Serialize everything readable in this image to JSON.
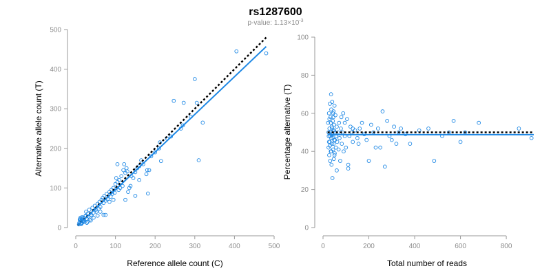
{
  "title": "rs1287600",
  "subtitle": {
    "prefix": "p-value: 1.13×10",
    "exponent": "-3"
  },
  "colors": {
    "points": "#1e88e5",
    "fit_line": "#1e88e5",
    "reference_line": "#000000",
    "axis": "#9a9a9a",
    "tick_text": "#8c8c8c"
  },
  "chart_data": [
    {
      "type": "scatter",
      "id": "left",
      "xlabel": "Reference allele count (C)",
      "ylabel": "Alternative allele count (T)",
      "xlim": [
        0,
        500
      ],
      "ylim": [
        0,
        500
      ],
      "xticks": [
        0,
        100,
        200,
        300,
        400,
        500
      ],
      "yticks": [
        0,
        100,
        200,
        300,
        400,
        500
      ],
      "fit_line": {
        "x": [
          5,
          480
        ],
        "y": [
          5,
          457
        ]
      },
      "reference_line": {
        "x": [
          5,
          480
        ],
        "y": [
          5,
          480
        ]
      },
      "points": [
        [
          8,
          8
        ],
        [
          10,
          14
        ],
        [
          12,
          18
        ],
        [
          9,
          12
        ],
        [
          13,
          10
        ],
        [
          15,
          20
        ],
        [
          16,
          12
        ],
        [
          11,
          22
        ],
        [
          14,
          16
        ],
        [
          18,
          15
        ],
        [
          20,
          25
        ],
        [
          17,
          22
        ],
        [
          22,
          14
        ],
        [
          24,
          28
        ],
        [
          19,
          18
        ],
        [
          12,
          25
        ],
        [
          10,
          20
        ],
        [
          14,
          9
        ],
        [
          16,
          26
        ],
        [
          21,
          18
        ],
        [
          25,
          30
        ],
        [
          28,
          22
        ],
        [
          30,
          35
        ],
        [
          26,
          40
        ],
        [
          32,
          28
        ],
        [
          35,
          20
        ],
        [
          34,
          45
        ],
        [
          38,
          32
        ],
        [
          40,
          30
        ],
        [
          30,
          15
        ],
        [
          42,
          50
        ],
        [
          45,
          38
        ],
        [
          48,
          55
        ],
        [
          50,
          45
        ],
        [
          52,
          40
        ],
        [
          55,
          60
        ],
        [
          58,
          48
        ],
        [
          60,
          65
        ],
        [
          62,
          52
        ],
        [
          65,
          70
        ],
        [
          68,
          75
        ],
        [
          70,
          62
        ],
        [
          72,
          80
        ],
        [
          75,
          68
        ],
        [
          78,
          85
        ],
        [
          80,
          72
        ],
        [
          70,
          32
        ],
        [
          75,
          32
        ],
        [
          85,
          90
        ],
        [
          88,
          78
        ],
        [
          90,
          95
        ],
        [
          92,
          85
        ],
        [
          95,
          100
        ],
        [
          98,
          88
        ],
        [
          100,
          110
        ],
        [
          102,
          125
        ],
        [
          105,
          115
        ],
        [
          108,
          95
        ],
        [
          110,
          120
        ],
        [
          112,
          100
        ],
        [
          115,
          130
        ],
        [
          118,
          105
        ],
        [
          120,
          145
        ],
        [
          122,
          160
        ],
        [
          125,
          138
        ],
        [
          128,
          150
        ],
        [
          130,
          142
        ],
        [
          132,
          90
        ],
        [
          135,
          100
        ],
        [
          138,
          105
        ],
        [
          140,
          130
        ],
        [
          145,
          125
        ],
        [
          150,
          140
        ],
        [
          155,
          150
        ],
        [
          160,
          155
        ],
        [
          165,
          170
        ],
        [
          170,
          160
        ],
        [
          178,
          135
        ],
        [
          180,
          145
        ],
        [
          182,
          86
        ],
        [
          185,
          145
        ],
        [
          190,
          180
        ],
        [
          200,
          190
        ],
        [
          210,
          200
        ],
        [
          215,
          168
        ],
        [
          212,
          215
        ],
        [
          230,
          225
        ],
        [
          240,
          230
        ],
        [
          247,
          320
        ],
        [
          265,
          250
        ],
        [
          270,
          258
        ],
        [
          272,
          315
        ],
        [
          290,
          280
        ],
        [
          300,
          375
        ],
        [
          305,
          315
        ],
        [
          310,
          170
        ],
        [
          320,
          265
        ],
        [
          405,
          445
        ],
        [
          480,
          440
        ],
        [
          105,
          160
        ],
        [
          85,
          65
        ],
        [
          95,
          70
        ],
        [
          125,
          70
        ],
        [
          150,
          80
        ],
        [
          160,
          120
        ],
        [
          62,
          40
        ],
        [
          55,
          30
        ],
        [
          45,
          25
        ],
        [
          38,
          18
        ],
        [
          28,
          12
        ]
      ]
    },
    {
      "type": "scatter",
      "id": "right",
      "xlabel": "Total number of reads",
      "ylabel": "Percentage alternative (T)",
      "xlim": [
        0,
        920
      ],
      "ylim": [
        0,
        100
      ],
      "xticks": [
        0,
        200,
        400,
        600,
        800
      ],
      "yticks": [
        0,
        20,
        40,
        60,
        80,
        100
      ],
      "fit_line": {
        "x": [
          20,
          920
        ],
        "y": [
          48.8,
          48.8
        ]
      },
      "reference_line": {
        "x": [
          20,
          920
        ],
        "y": [
          50,
          50
        ]
      },
      "points": [
        [
          22,
          55
        ],
        [
          24,
          42
        ],
        [
          25,
          48
        ],
        [
          26,
          60
        ],
        [
          27,
          38
        ],
        [
          28,
          52
        ],
        [
          29,
          45
        ],
        [
          30,
          65
        ],
        [
          31,
          35
        ],
        [
          32,
          50
        ],
        [
          33,
          58
        ],
        [
          34,
          40
        ],
        [
          35,
          47
        ],
        [
          36,
          62
        ],
        [
          37,
          33
        ],
        [
          38,
          53
        ],
        [
          39,
          44
        ],
        [
          40,
          66
        ],
        [
          41,
          26
        ],
        [
          42,
          49
        ],
        [
          43,
          56
        ],
        [
          44,
          41
        ],
        [
          45,
          51
        ],
        [
          46,
          61
        ],
        [
          47,
          36
        ],
        [
          48,
          54
        ],
        [
          49,
          46
        ],
        [
          50,
          64
        ],
        [
          51,
          39
        ],
        [
          52,
          50
        ],
        [
          24,
          50
        ],
        [
          26,
          45
        ],
        [
          28,
          57
        ],
        [
          30,
          43
        ],
        [
          32,
          48
        ],
        [
          34,
          55
        ],
        [
          36,
          40
        ],
        [
          38,
          49
        ],
        [
          40,
          52
        ],
        [
          42,
          47
        ],
        [
          44,
          60
        ],
        [
          46,
          44
        ],
        [
          48,
          51
        ],
        [
          50,
          38
        ],
        [
          52,
          46
        ],
        [
          54,
          59
        ],
        [
          56,
          42
        ],
        [
          58,
          48
        ],
        [
          60,
          53
        ],
        [
          62,
          45
        ],
        [
          65,
          50
        ],
        [
          68,
          41
        ],
        [
          70,
          55
        ],
        [
          72,
          47
        ],
        [
          75,
          35
        ],
        [
          78,
          52
        ],
        [
          80,
          58
        ],
        [
          82,
          44
        ],
        [
          85,
          50
        ],
        [
          88,
          60
        ],
        [
          90,
          40
        ],
        [
          95,
          48
        ],
        [
          100,
          42
        ],
        [
          105,
          57
        ],
        [
          110,
          33
        ],
        [
          115,
          48
        ],
        [
          120,
          53
        ],
        [
          125,
          50
        ],
        [
          130,
          45
        ],
        [
          140,
          51
        ],
        [
          150,
          47
        ],
        [
          160,
          52
        ],
        [
          170,
          55
        ],
        [
          180,
          49
        ],
        [
          190,
          46
        ],
        [
          200,
          35
        ],
        [
          210,
          54
        ],
        [
          220,
          50
        ],
        [
          230,
          42
        ],
        [
          240,
          52
        ],
        [
          260,
          61
        ],
        [
          270,
          32
        ],
        [
          280,
          56
        ],
        [
          290,
          48
        ],
        [
          300,
          46
        ],
        [
          310,
          53
        ],
        [
          320,
          44
        ],
        [
          330,
          50
        ],
        [
          340,
          52
        ],
        [
          360,
          49
        ],
        [
          380,
          44
        ],
        [
          420,
          51
        ],
        [
          460,
          52
        ],
        [
          485,
          35
        ],
        [
          520,
          48
        ],
        [
          550,
          50
        ],
        [
          570,
          56
        ],
        [
          600,
          45
        ],
        [
          620,
          50
        ],
        [
          680,
          55
        ],
        [
          855,
          52
        ],
        [
          910,
          47
        ],
        [
          110,
          31
        ],
        [
          130,
          52
        ],
        [
          155,
          44
        ],
        [
          35,
          70
        ],
        [
          45,
          58
        ],
        [
          60,
          30
        ],
        [
          95,
          55
        ],
        [
          250,
          42
        ]
      ]
    }
  ]
}
